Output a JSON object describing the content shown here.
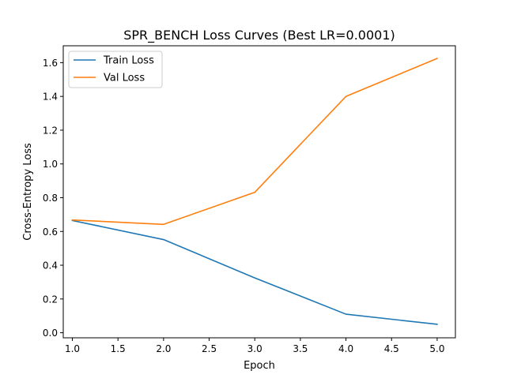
{
  "chart_data": {
    "type": "line",
    "title": "SPR_BENCH Loss Curves (Best LR=0.0001)",
    "xlabel": "Epoch",
    "ylabel": "Cross-Entropy Loss",
    "x": [
      1.0,
      2.0,
      3.0,
      4.0,
      5.0
    ],
    "xlim": [
      0.9,
      5.2
    ],
    "ylim": [
      -0.03,
      1.7
    ],
    "xticks": [
      1.0,
      1.5,
      2.0,
      2.5,
      3.0,
      3.5,
      4.0,
      4.5,
      5.0
    ],
    "xtick_labels": [
      "1.0",
      "1.5",
      "2.0",
      "2.5",
      "3.0",
      "3.5",
      "4.0",
      "4.5",
      "5.0"
    ],
    "yticks": [
      0.0,
      0.2,
      0.4,
      0.6,
      0.8,
      1.0,
      1.2,
      1.4,
      1.6
    ],
    "ytick_labels": [
      "0.0",
      "0.2",
      "0.4",
      "0.6",
      "0.8",
      "1.0",
      "1.2",
      "1.4",
      "1.6"
    ],
    "grid": false,
    "legend_position": "top-left",
    "series": [
      {
        "name": "Train Loss",
        "color": "#1f77b4",
        "values": [
          0.665,
          0.552,
          0.325,
          0.11,
          0.05
        ]
      },
      {
        "name": "Val Loss",
        "color": "#ff7f0e",
        "values": [
          0.668,
          0.642,
          0.832,
          1.4,
          1.625
        ]
      }
    ]
  }
}
